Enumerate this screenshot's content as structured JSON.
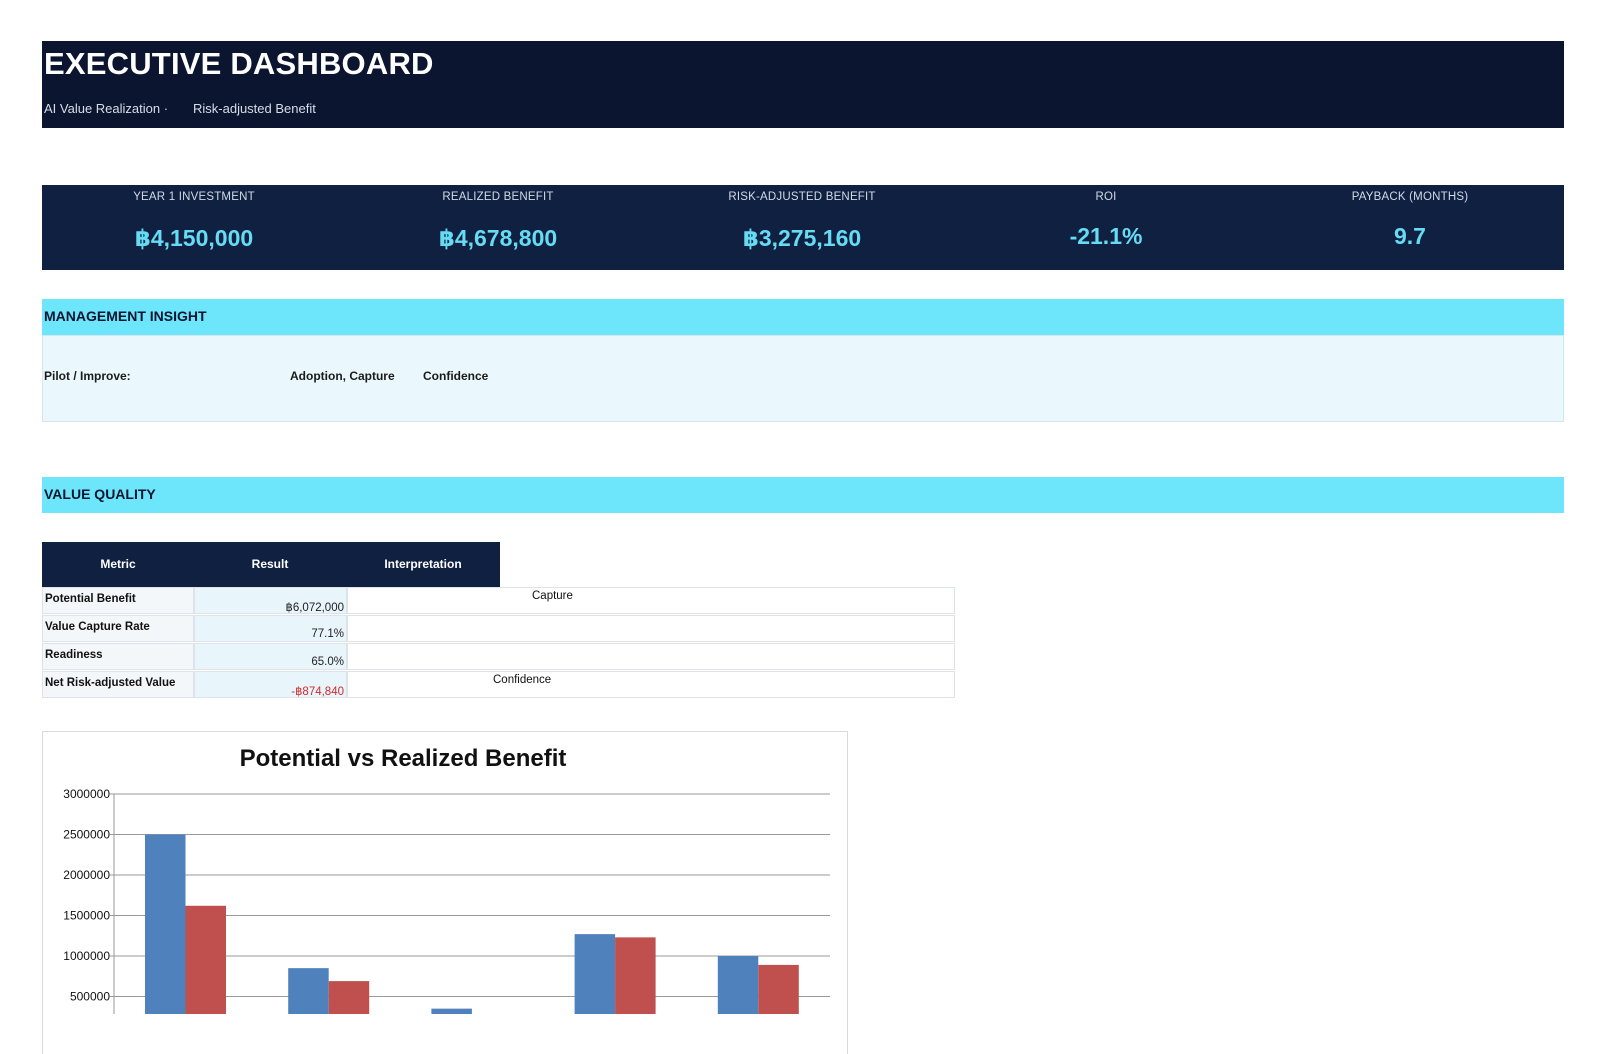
{
  "header": {
    "title": "EXECUTIVE DASHBOARD",
    "subtitle_left": "AI Value Realization ·",
    "subtitle_right": "Risk-adjusted Benefit"
  },
  "kpis": [
    {
      "label": "YEAR 1 INVESTMENT",
      "value": "฿4,150,000"
    },
    {
      "label": "REALIZED BENEFIT",
      "value": "฿4,678,800"
    },
    {
      "label": "RISK-ADJUSTED BENEFIT",
      "value": "฿3,275,160"
    },
    {
      "label": "ROI",
      "value": "-21.1%"
    },
    {
      "label": "PAYBACK (MONTHS)",
      "value": "9.7"
    }
  ],
  "insight": {
    "section_title": "MANAGEMENT INSIGHT",
    "label": "Pilot / Improve:",
    "focus": "Adoption, Capture",
    "confidence": "Confidence"
  },
  "value_quality": {
    "section_title": "VALUE QUALITY",
    "headers": [
      "Metric",
      "Result",
      "Interpretation"
    ],
    "rows": [
      {
        "metric": "Potential Benefit",
        "result": "฿6,072,000",
        "interpretation": "Capture"
      },
      {
        "metric": "Value Capture Rate",
        "result": "77.1%",
        "interpretation": ""
      },
      {
        "metric": "Readiness",
        "result": "65.0%",
        "interpretation": ""
      },
      {
        "metric": "Net Risk-adjusted Value",
        "result": "-฿874,840",
        "interpretation": "Confidence"
      }
    ]
  },
  "colors": {
    "header_bg": "#0b1530",
    "kpi_bg": "#0f2041",
    "kpi_value": "#66dcf4",
    "section_bar": "#6de6fb",
    "negative": "#d42a2a",
    "series_potential": "#4f81bd",
    "series_realized": "#c0504d"
  },
  "chart_data": {
    "type": "bar",
    "title": "Potential vs Realized Benefit",
    "xlabel": "",
    "ylabel": "",
    "ylim": [
      0,
      3000000
    ],
    "yticks": [
      500000,
      1000000,
      1500000,
      2000000,
      2500000,
      3000000
    ],
    "grid": true,
    "categories": [
      "",
      "",
      "",
      "",
      ""
    ],
    "series": [
      {
        "values": [
          2500000,
          850000,
          350000,
          1270000,
          1000000
        ],
        "color": "#4f81bd"
      },
      {
        "values": [
          1620000,
          690000,
          0,
          1230000,
          890000
        ],
        "color": "#c0504d"
      }
    ]
  }
}
